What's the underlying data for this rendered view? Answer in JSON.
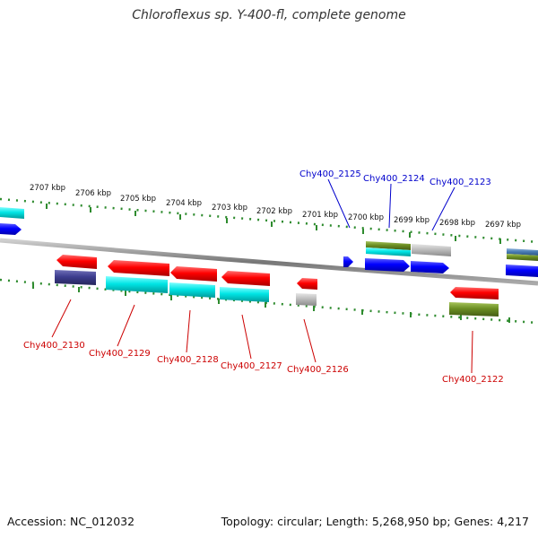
{
  "title": "Chloroflexus sp. Y-400-fl, complete genome",
  "footer": {
    "accession": "Accession: NC_012032",
    "summary": "Topology: circular; Length: 5,268,950 bp; Genes: 4,217"
  },
  "scale": {
    "unit": "kbp",
    "ticks": [
      {
        "label": "2707 kbp",
        "kbp": 2707
      },
      {
        "label": "2706 kbp",
        "kbp": 2706
      },
      {
        "label": "2705 kbp",
        "kbp": 2705
      },
      {
        "label": "2704 kbp",
        "kbp": 2704
      },
      {
        "label": "2703 kbp",
        "kbp": 2703
      },
      {
        "label": "2702 kbp",
        "kbp": 2702
      },
      {
        "label": "2701 kbp",
        "kbp": 2701
      },
      {
        "label": "2700 kbp",
        "kbp": 2700
      },
      {
        "label": "2699 kbp",
        "kbp": 2699
      },
      {
        "label": "2698 kbp",
        "kbp": 2698
      },
      {
        "label": "2697 kbp",
        "kbp": 2697
      }
    ]
  },
  "colors": {
    "forward_label": "#0000cc",
    "reverse_label": "#cc0000",
    "backbone": "#888888",
    "ruler": "#2e8b2e",
    "red": "#ff0000",
    "blue": "#0000ff",
    "cyan": "#00e5e5",
    "navy": "#3d3d8f",
    "olive": "#6b8e23",
    "gray": "#bdbdbd",
    "steel": "#4a7db5"
  },
  "forward_labels": [
    {
      "text": "Chy400_2125",
      "color": "#0000cc"
    },
    {
      "text": "Chy400_2124",
      "color": "#0000cc"
    },
    {
      "text": "Chy400_2123",
      "color": "#0000cc"
    }
  ],
  "reverse_labels": [
    {
      "text": "Chy400_2130",
      "color": "#cc0000"
    },
    {
      "text": "Chy400_2129",
      "color": "#cc0000"
    },
    {
      "text": "Chy400_2128",
      "color": "#cc0000"
    },
    {
      "text": "Chy400_2127",
      "color": "#cc0000"
    },
    {
      "text": "Chy400_2126",
      "color": "#cc0000"
    },
    {
      "text": "Chy400_2122",
      "color": "#cc0000"
    }
  ]
}
